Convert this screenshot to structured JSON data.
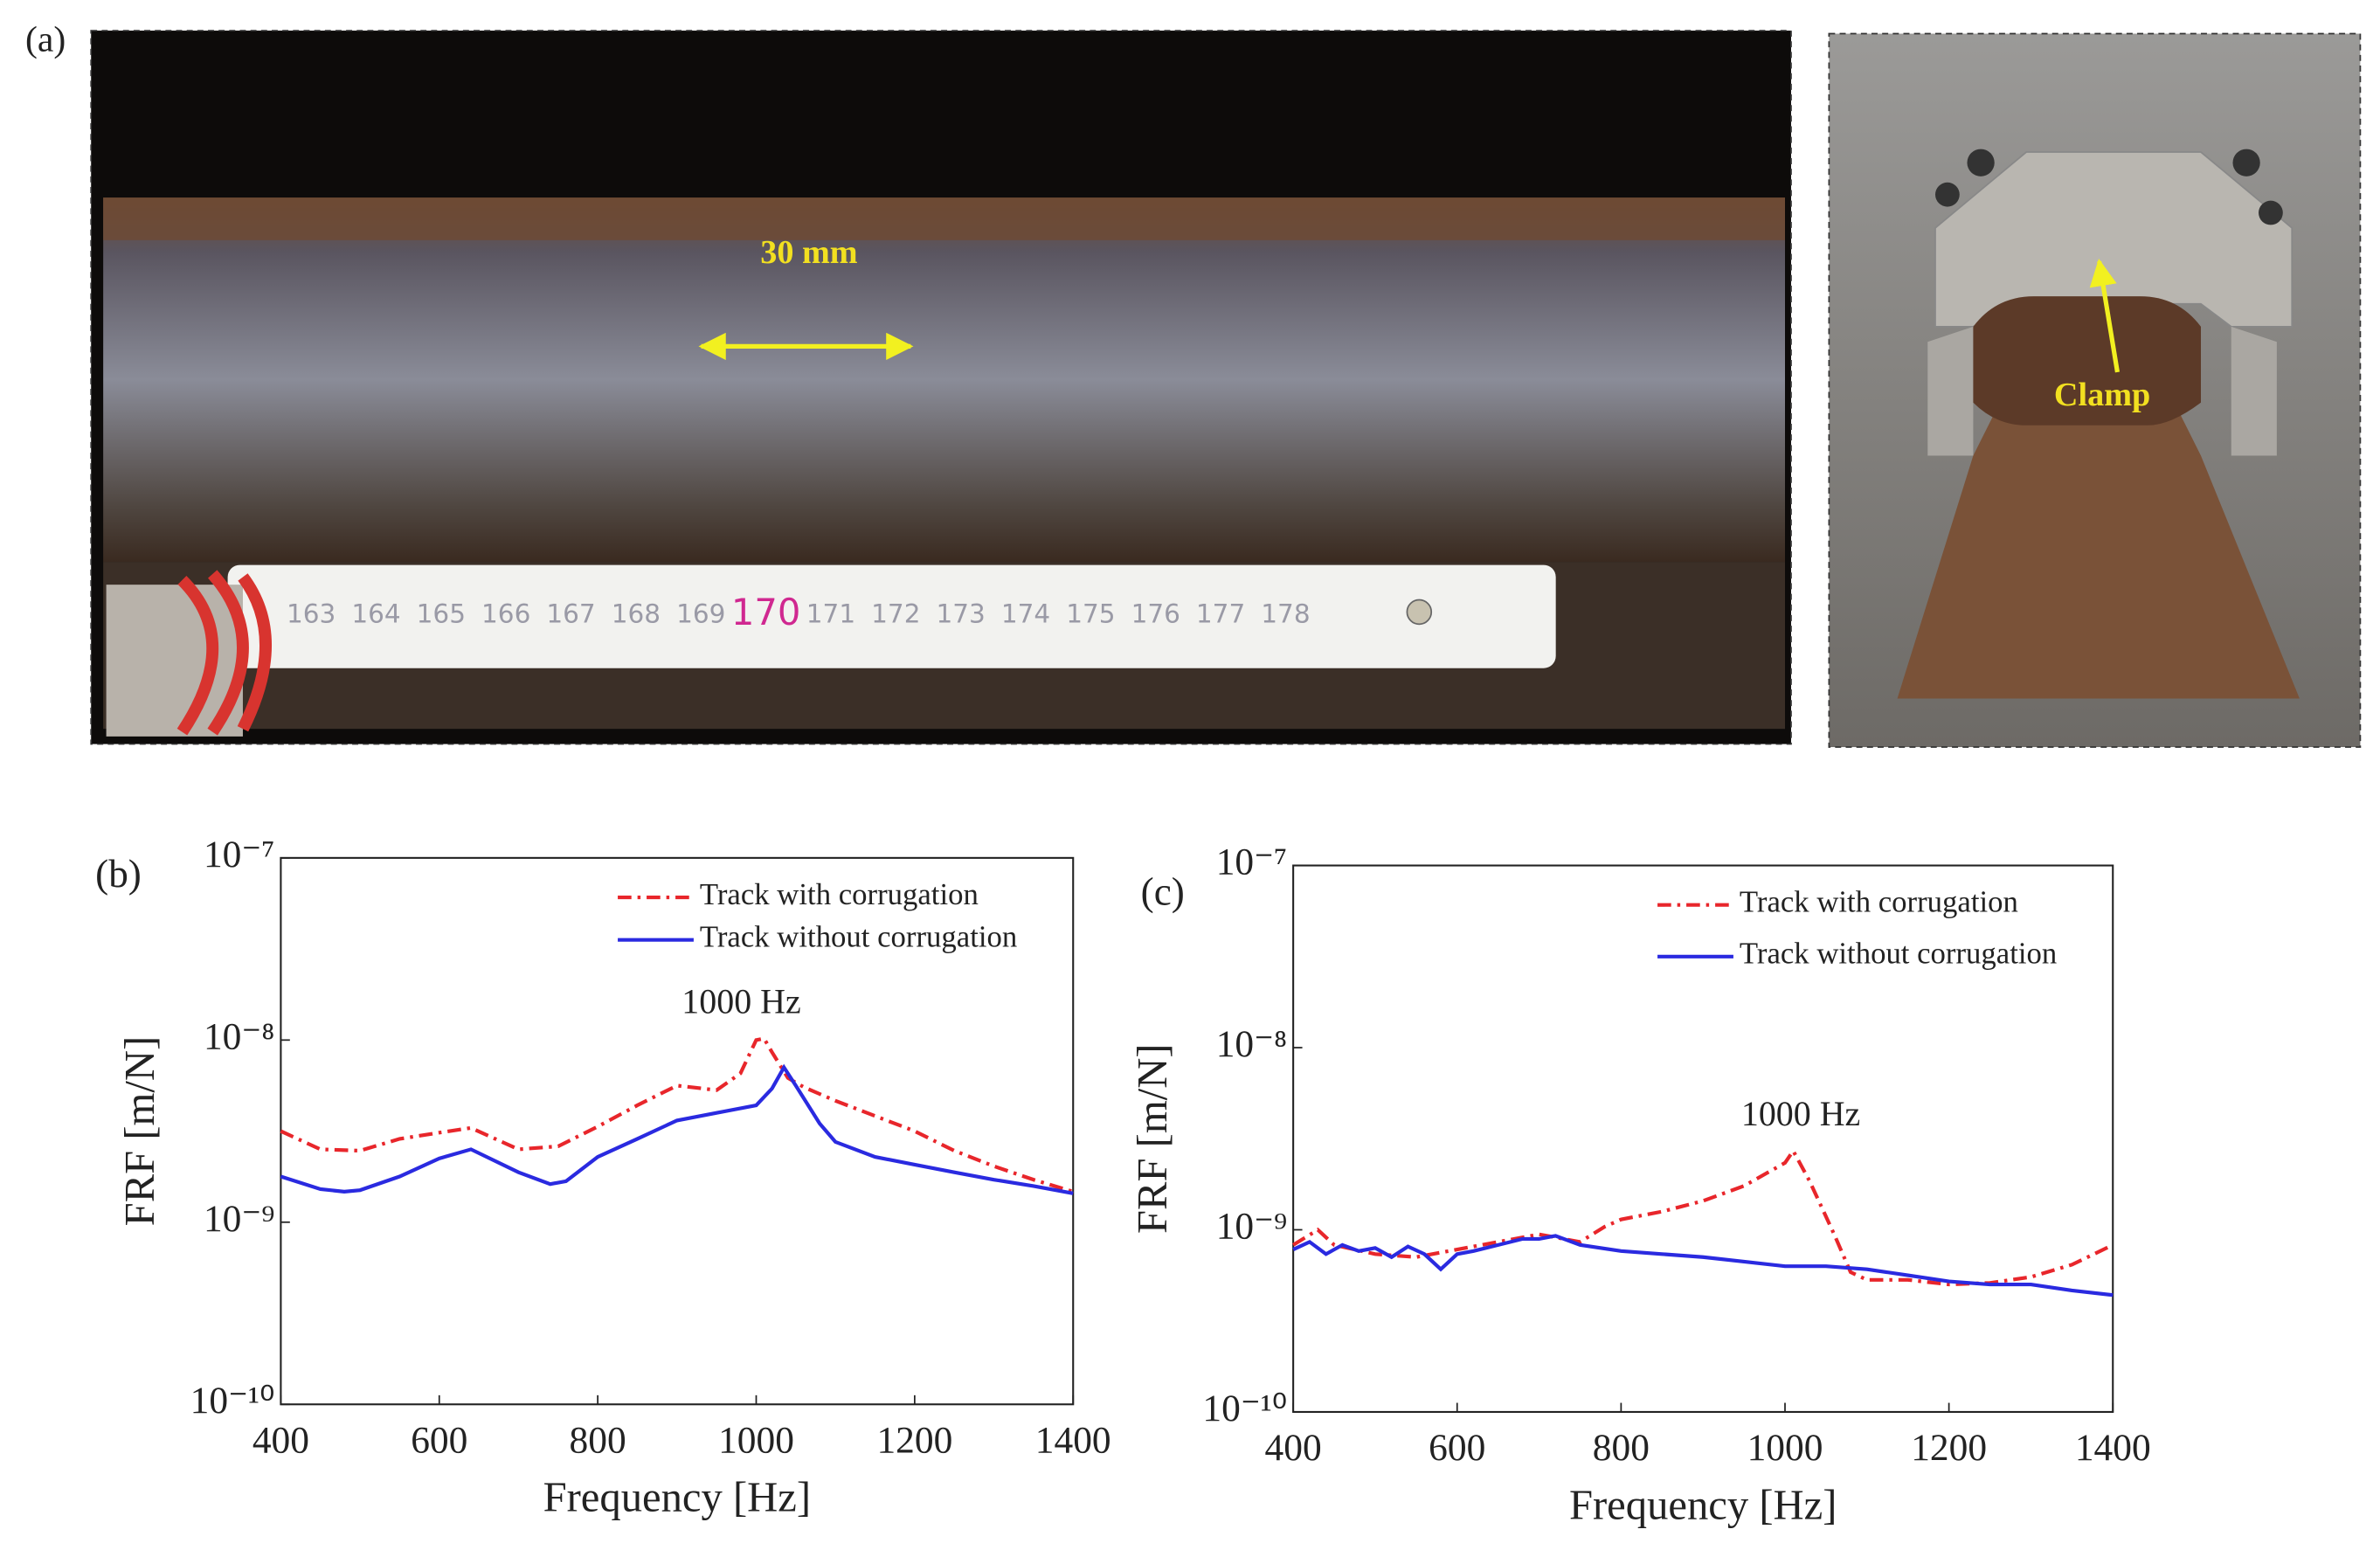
{
  "figure_a": {
    "label": "(a)",
    "scale_text": "30 mm",
    "clamp_text": "Clamp",
    "ruler_labels": [
      "163",
      "164",
      "165",
      "166",
      "167",
      "168",
      "169",
      "170",
      "171",
      "172",
      "173",
      "174",
      "175",
      "176",
      "177",
      "178"
    ]
  },
  "chart_data": [
    {
      "type": "line",
      "panel_label": "(b)",
      "xlabel": "Frequency [Hz]",
      "ylabel": "FRF [m/N]",
      "annotation": "1000 Hz",
      "xlim": [
        400,
        1400
      ],
      "xticks": [
        400,
        600,
        800,
        1000,
        1200,
        1400
      ],
      "yscale": "log",
      "ylim": [
        1e-10,
        1e-07
      ],
      "yticks": [
        {
          "value": 1e-10,
          "label": "10⁻¹⁰"
        },
        {
          "value": 1e-09,
          "label": "10⁻⁹"
        },
        {
          "value": 1e-08,
          "label": "10⁻⁸"
        },
        {
          "value": 1e-07,
          "label": "10⁻⁷"
        }
      ],
      "legend": "upper right",
      "series": [
        {
          "name": "Track with corrugation",
          "color": "#e8262b",
          "style": "dashdot",
          "x": [
            400,
            450,
            500,
            550,
            600,
            640,
            700,
            750,
            800,
            850,
            900,
            950,
            980,
            1000,
            1010,
            1020,
            1040,
            1060,
            1100,
            1150,
            1200,
            1250,
            1300,
            1350,
            1400
          ],
          "values": [
            3.16e-09,
            2.51e-09,
            2.47e-09,
            2.87e-09,
            3.1e-09,
            3.29e-09,
            2.51e-09,
            2.61e-09,
            3.35e-09,
            4.38e-09,
            5.62e-09,
            5.31e-09,
            6.56e-09,
            1e-08,
            1.02e-08,
            8.58e-09,
            6.19e-09,
            5.52e-09,
            4.64e-09,
            3.83e-09,
            3.16e-09,
            2.47e-09,
            2.03e-09,
            1.71e-09,
            1.47e-09
          ]
        },
        {
          "name": "Track without corrugation",
          "color": "#2a2ae0",
          "style": "solid",
          "x": [
            400,
            450,
            480,
            500,
            550,
            600,
            640,
            700,
            740,
            760,
            800,
            850,
            900,
            950,
            1000,
            1020,
            1035,
            1050,
            1080,
            1100,
            1150,
            1200,
            1250,
            1300,
            1350,
            1400
          ],
          "values": [
            1.78e-09,
            1.52e-09,
            1.47e-09,
            1.5e-09,
            1.78e-09,
            2.24e-09,
            2.51e-09,
            1.88e-09,
            1.62e-09,
            1.68e-09,
            2.28e-09,
            2.87e-09,
            3.62e-09,
            3.98e-09,
            4.38e-09,
            5.41e-09,
            7.08e-09,
            5.62e-09,
            3.48e-09,
            2.76e-09,
            2.28e-09,
            2.07e-09,
            1.88e-09,
            1.71e-09,
            1.58e-09,
            1.44e-09
          ]
        }
      ]
    },
    {
      "type": "line",
      "panel_label": "(c)",
      "xlabel": "Frequency [Hz]",
      "ylabel": "FRF [m/N]",
      "annotation": "1000 Hz",
      "xlim": [
        400,
        1400
      ],
      "xticks": [
        400,
        600,
        800,
        1000,
        1200,
        1400
      ],
      "yscale": "log",
      "ylim": [
        1e-10,
        1e-07
      ],
      "yticks": [
        {
          "value": 1e-10,
          "label": "10⁻¹⁰"
        },
        {
          "value": 1e-09,
          "label": "10⁻⁹"
        },
        {
          "value": 1e-08,
          "label": "10⁻⁸"
        },
        {
          "value": 1e-07,
          "label": "10⁻⁷"
        }
      ],
      "legend": "upper right",
      "series": [
        {
          "name": "Track with corrugation",
          "color": "#e8262b",
          "style": "dashdot",
          "x": [
            400,
            430,
            450,
            500,
            550,
            600,
            650,
            700,
            750,
            780,
            800,
            850,
            900,
            950,
            1000,
            1010,
            1030,
            1060,
            1080,
            1100,
            1150,
            1200,
            1250,
            1300,
            1350,
            1400
          ],
          "values": [
            8.25e-10,
            1e-09,
            8.25e-10,
            7.36e-10,
            7.08e-10,
            7.79e-10,
            8.58e-10,
            9.44e-10,
            8.58e-10,
            1.04e-09,
            1.14e-09,
            1.26e-09,
            1.44e-09,
            1.74e-09,
            2.33e-09,
            2.71e-09,
            1.85e-09,
            9.44e-10,
            5.85e-10,
            5.31e-10,
            5.31e-10,
            5.01e-10,
            5.11e-10,
            5.51e-10,
            6.43e-10,
            8.25e-10
          ]
        },
        {
          "name": "Track without corrugation",
          "color": "#2a2ae0",
          "style": "solid",
          "x": [
            400,
            420,
            440,
            460,
            480,
            500,
            520,
            540,
            560,
            580,
            600,
            620,
            650,
            680,
            700,
            720,
            750,
            800,
            850,
            900,
            950,
            1000,
            1050,
            1100,
            1150,
            1200,
            1250,
            1300,
            1350,
            1400
          ],
          "values": [
            7.79e-10,
            8.58e-10,
            7.36e-10,
            8.25e-10,
            7.64e-10,
            7.94e-10,
            7.08e-10,
            8.1e-10,
            7.36e-10,
            6.07e-10,
            7.36e-10,
            7.64e-10,
            8.25e-10,
            8.91e-10,
            8.91e-10,
            9.27e-10,
            8.25e-10,
            7.64e-10,
            7.36e-10,
            7.08e-10,
            6.68e-10,
            6.31e-10,
            6.31e-10,
            6.07e-10,
            5.62e-10,
            5.21e-10,
            5.01e-10,
            5.01e-10,
            4.64e-10,
            4.38e-10
          ]
        }
      ]
    }
  ]
}
